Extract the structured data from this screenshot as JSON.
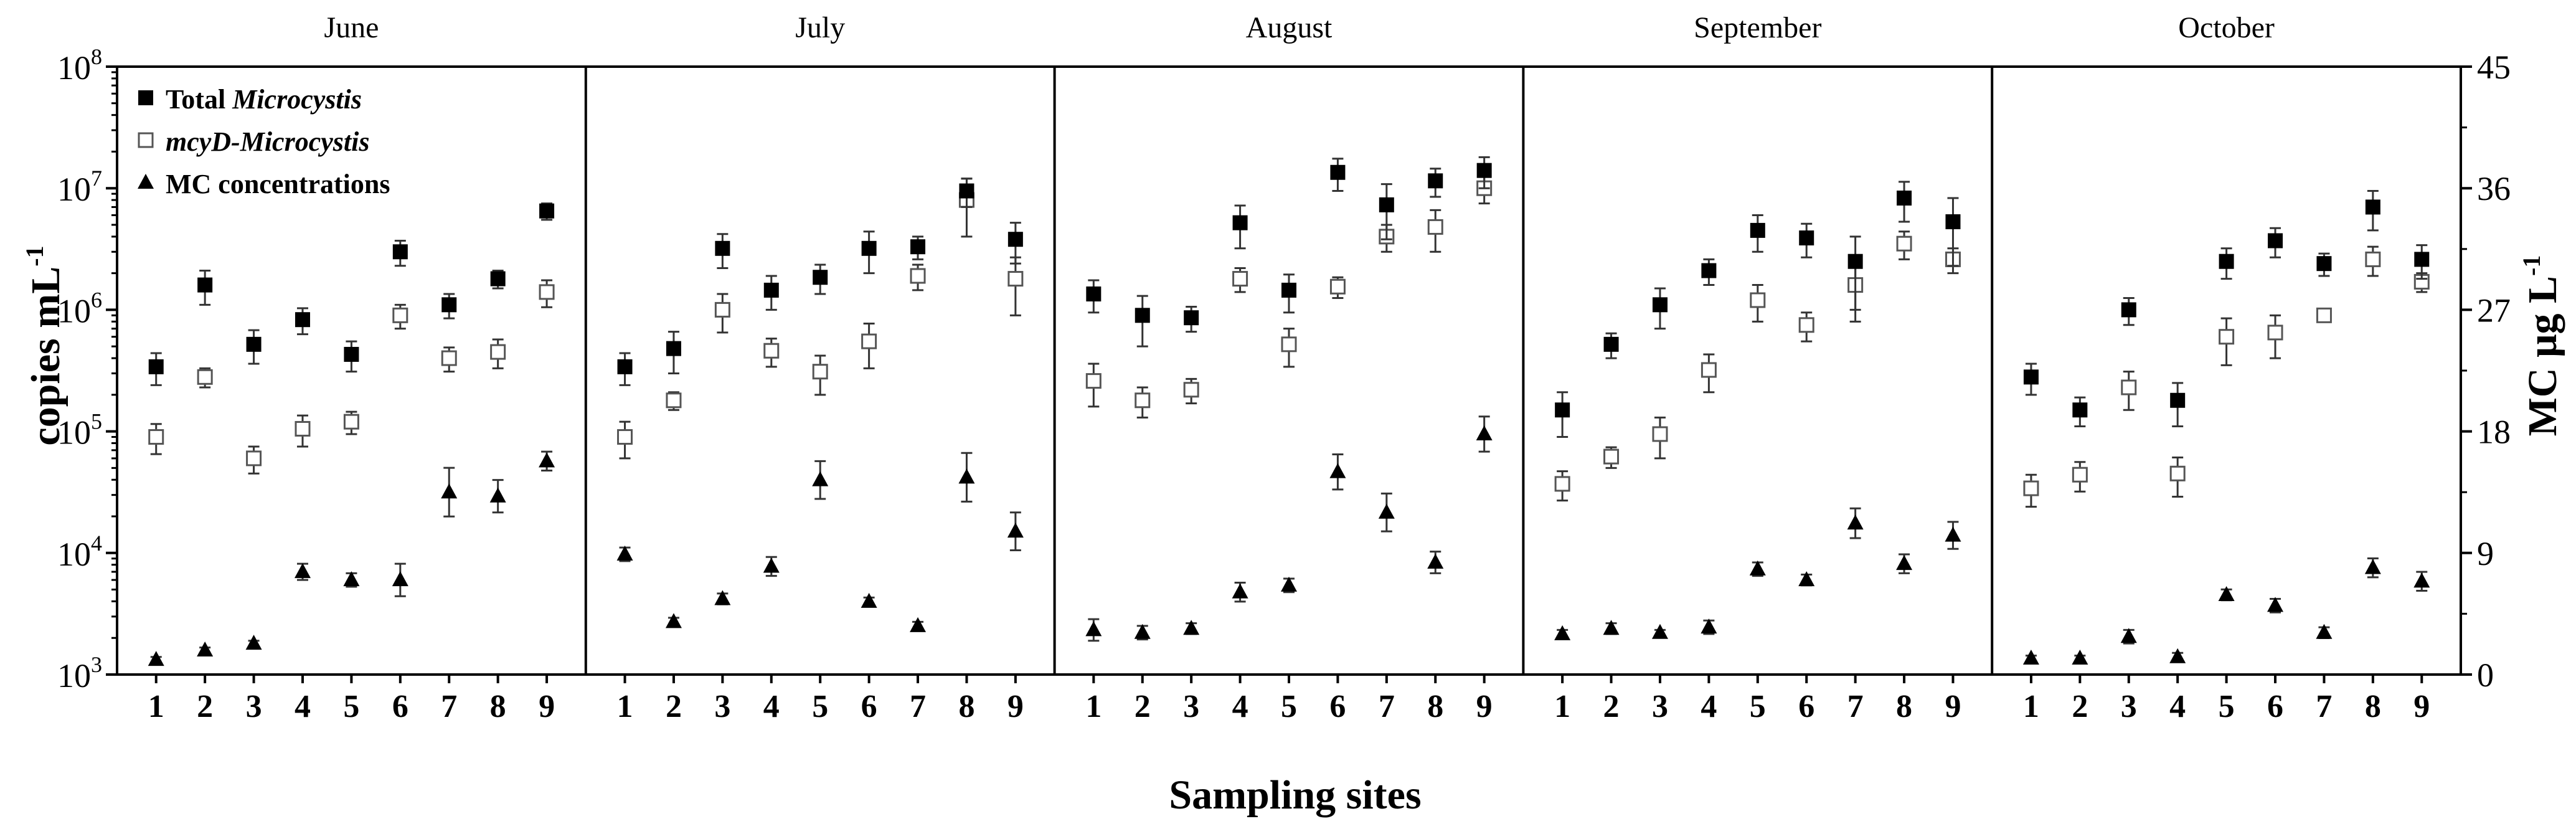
{
  "chart_data": {
    "type": "scatter",
    "xlabel": "Sampling sites",
    "ylabel_left": {
      "base": "copies mL",
      "sup": "-1"
    },
    "ylabel_right": {
      "base": "MC μg L",
      "sup": "-1"
    },
    "left_axis": {
      "scale": "log",
      "ylim": [
        1000,
        100000000
      ],
      "ticks": [
        {
          "base": "10",
          "exp": "3"
        },
        {
          "base": "10",
          "exp": "4"
        },
        {
          "base": "10",
          "exp": "5"
        },
        {
          "base": "10",
          "exp": "6"
        },
        {
          "base": "10",
          "exp": "7"
        },
        {
          "base": "10",
          "exp": "8"
        }
      ]
    },
    "right_axis": {
      "scale": "linear",
      "ylim": [
        0,
        45
      ],
      "ticks": [
        "0",
        "9",
        "18",
        "27",
        "36",
        "45"
      ]
    },
    "sites": [
      "1",
      "2",
      "3",
      "4",
      "5",
      "6",
      "7",
      "8",
      "9"
    ],
    "legend": {
      "placement": "top-left",
      "entries": [
        {
          "marker": "filled-square",
          "prefix": "Total ",
          "italic": "Microcystis"
        },
        {
          "marker": "open-square",
          "prefix": "",
          "italic": "mcyD-Microcystis"
        },
        {
          "marker": "filled-triangle",
          "prefix": "MC concentrations",
          "italic": ""
        }
      ]
    },
    "panels": [
      {
        "month": "June",
        "total": [
          [
            340000,
            100000
          ],
          [
            1600000,
            500000
          ],
          [
            520000,
            160000
          ],
          [
            830000,
            200000
          ],
          [
            430000,
            120000
          ],
          [
            3000000,
            700000
          ],
          [
            1100000,
            250000
          ],
          [
            1800000,
            300000
          ],
          [
            6500000,
            1000000
          ]
        ],
        "mcyd": [
          [
            90000,
            25000
          ],
          [
            280000,
            50000
          ],
          [
            60000,
            15000
          ],
          [
            105000,
            30000
          ],
          [
            120000,
            25000
          ],
          [
            900000,
            200000
          ],
          [
            400000,
            90000
          ],
          [
            450000,
            120000
          ],
          [
            1400000,
            350000
          ]
        ],
        "mc": [
          [
            1.1,
            0.2
          ],
          [
            1.8,
            0.2
          ],
          [
            2.3,
            0.2
          ],
          [
            7.6,
            0.6
          ],
          [
            7.0,
            0.5
          ],
          [
            7.0,
            1.2
          ],
          [
            13.5,
            1.8
          ],
          [
            13.2,
            1.2
          ],
          [
            15.8,
            0.7
          ]
        ]
      },
      {
        "month": "July",
        "total": [
          [
            340000,
            100000
          ],
          [
            480000,
            180000
          ],
          [
            3200000,
            1000000
          ],
          [
            1450000,
            450000
          ],
          [
            1850000,
            500000
          ],
          [
            3200000,
            1200000
          ],
          [
            3300000,
            700000
          ],
          [
            9500000,
            2500000
          ],
          [
            3800000,
            1400000
          ]
        ],
        "mcyd": [
          [
            90000,
            30000
          ],
          [
            180000,
            30000
          ],
          [
            1000000,
            350000
          ],
          [
            460000,
            120000
          ],
          [
            310000,
            110000
          ],
          [
            550000,
            220000
          ],
          [
            1900000,
            450000
          ],
          [
            8000000,
            4000000
          ],
          [
            1800000,
            900000
          ]
        ],
        "mc": [
          [
            8.9,
            0.5
          ],
          [
            3.9,
            0.3
          ],
          [
            5.6,
            0.4
          ],
          [
            8.0,
            0.7
          ],
          [
            14.4,
            1.4
          ],
          [
            5.4,
            0.3
          ],
          [
            3.6,
            0.3
          ],
          [
            14.6,
            1.8
          ],
          [
            10.6,
            1.4
          ]
        ]
      },
      {
        "month": "August",
        "total": [
          [
            1350000,
            400000
          ],
          [
            900000,
            400000
          ],
          [
            860000,
            200000
          ],
          [
            5200000,
            2000000
          ],
          [
            1450000,
            500000
          ],
          [
            13500000,
            4000000
          ],
          [
            7300000,
            3500000
          ],
          [
            11500000,
            3000000
          ],
          [
            14000000,
            4000000
          ]
        ],
        "mcyd": [
          [
            260000,
            100000
          ],
          [
            180000,
            50000
          ],
          [
            220000,
            50000
          ],
          [
            1800000,
            400000
          ],
          [
            520000,
            180000
          ],
          [
            1550000,
            300000
          ],
          [
            4000000,
            1000000
          ],
          [
            4800000,
            1800000
          ],
          [
            10000000,
            2500000
          ]
        ],
        "mc": [
          [
            3.3,
            0.8
          ],
          [
            3.1,
            0.5
          ],
          [
            3.4,
            0.4
          ],
          [
            6.1,
            0.7
          ],
          [
            6.6,
            0.5
          ],
          [
            15.0,
            1.3
          ],
          [
            12.0,
            1.4
          ],
          [
            8.3,
            0.8
          ],
          [
            17.8,
            1.3
          ]
        ]
      },
      {
        "month": "September",
        "total": [
          [
            150000,
            60000
          ],
          [
            520000,
            120000
          ],
          [
            1100000,
            400000
          ],
          [
            2100000,
            500000
          ],
          [
            4500000,
            1500000
          ],
          [
            3900000,
            1200000
          ],
          [
            2500000,
            1500000
          ],
          [
            8300000,
            3000000
          ],
          [
            5300000,
            3000000
          ]
        ],
        "mcyd": [
          [
            37000,
            10000
          ],
          [
            62000,
            12000
          ],
          [
            95000,
            35000
          ],
          [
            320000,
            110000
          ],
          [
            1200000,
            400000
          ],
          [
            750000,
            200000
          ],
          [
            1600000,
            800000
          ],
          [
            3500000,
            900000
          ],
          [
            2600000,
            600000
          ]
        ],
        "mc": [
          [
            3.0,
            0.3
          ],
          [
            3.4,
            0.4
          ],
          [
            3.1,
            0.2
          ],
          [
            3.5,
            0.5
          ],
          [
            7.8,
            0.5
          ],
          [
            7.0,
            0.4
          ],
          [
            11.2,
            1.1
          ],
          [
            8.2,
            0.7
          ],
          [
            10.3,
            1.0
          ]
        ]
      },
      {
        "month": "October",
        "total": [
          [
            280000,
            80000
          ],
          [
            150000,
            40000
          ],
          [
            1000000,
            250000
          ],
          [
            180000,
            70000
          ],
          [
            2500000,
            700000
          ],
          [
            3700000,
            1000000
          ],
          [
            2400000,
            500000
          ],
          [
            7000000,
            2500000
          ],
          [
            2600000,
            800000
          ]
        ],
        "mcyd": [
          [
            34000,
            10000
          ],
          [
            44000,
            12000
          ],
          [
            230000,
            80000
          ],
          [
            45000,
            16000
          ],
          [
            600000,
            250000
          ],
          [
            650000,
            250000
          ],
          [
            900000,
            80000
          ],
          [
            2600000,
            700000
          ],
          [
            1700000,
            300000
          ]
        ],
        "mc": [
          [
            1.2,
            0.2
          ],
          [
            1.2,
            0.2
          ],
          [
            2.8,
            0.5
          ],
          [
            1.3,
            0.3
          ],
          [
            5.9,
            0.4
          ],
          [
            5.1,
            0.5
          ],
          [
            3.1,
            0.4
          ],
          [
            7.9,
            0.7
          ],
          [
            6.9,
            0.7
          ]
        ]
      }
    ]
  }
}
